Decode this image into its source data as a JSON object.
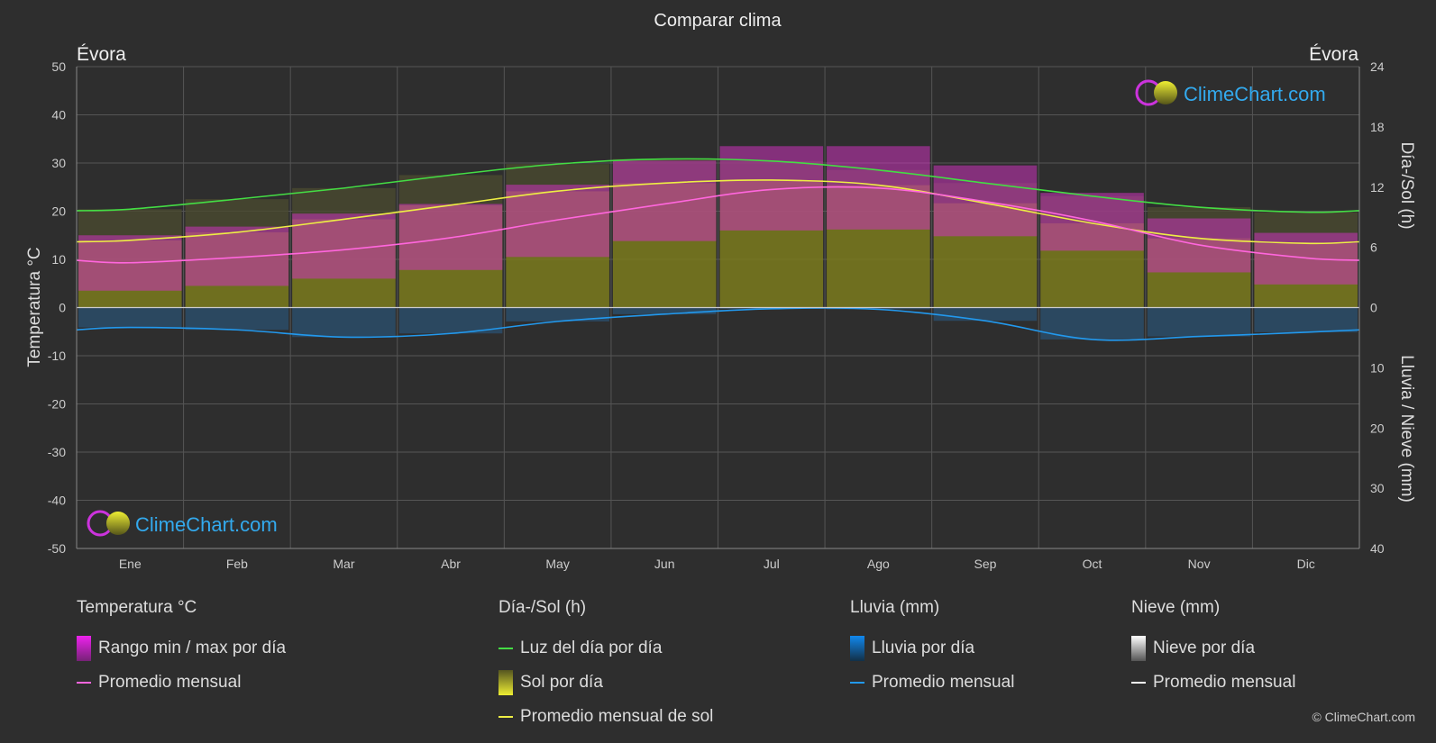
{
  "chart_data": {
    "type": "area",
    "title": "Comparar clima",
    "location_left": "Évora",
    "location_right": "Évora",
    "categories": [
      "Ene",
      "Feb",
      "Mar",
      "Abr",
      "May",
      "Jun",
      "Jul",
      "Ago",
      "Sep",
      "Oct",
      "Nov",
      "Dic"
    ],
    "y_left": {
      "label": "Temperatura °C",
      "range": [
        -50,
        50
      ],
      "ticks": [
        50,
        40,
        30,
        20,
        10,
        0,
        -10,
        -20,
        -30,
        -40,
        -50
      ]
    },
    "y_right_top": {
      "label": "Día-/Sol (h)",
      "range": [
        0,
        24
      ],
      "ticks": [
        24,
        18,
        12,
        6,
        0
      ]
    },
    "y_right_bottom": {
      "label": "Lluvia / Nieve (mm)",
      "range": [
        0,
        40
      ],
      "ticks": [
        0,
        10,
        20,
        30,
        40
      ]
    },
    "series": [
      {
        "name": "Luz del día por día",
        "unit": "h",
        "color": "#44dd44",
        "values": [
          9.8,
          10.8,
          11.9,
          13.2,
          14.3,
          14.8,
          14.6,
          13.7,
          12.4,
          11.1,
          10.0,
          9.5
        ]
      },
      {
        "name": "Promedio mensual de sol",
        "unit": "h",
        "color": "#eeee44",
        "values": [
          6.7,
          7.5,
          8.8,
          10.2,
          11.6,
          12.4,
          12.7,
          12.2,
          10.4,
          8.4,
          6.9,
          6.4
        ]
      },
      {
        "name": "Promedio mensual",
        "group": "Temperatura °C",
        "unit": "°C",
        "color": "#ff66dd",
        "values": [
          9.3,
          10.4,
          12.0,
          14.5,
          18.2,
          21.5,
          24.5,
          24.8,
          22.0,
          18.0,
          13.0,
          10.3
        ]
      },
      {
        "name": "Rango min / max por día",
        "unit": "°C",
        "color": "#dd22dd",
        "min": [
          3.5,
          4.5,
          6.0,
          7.8,
          10.5,
          13.8,
          16.0,
          16.2,
          14.8,
          11.8,
          7.3,
          4.8
        ],
        "max": [
          15.0,
          16.8,
          19.5,
          21.5,
          25.5,
          30.5,
          33.5,
          33.5,
          29.5,
          23.8,
          18.5,
          15.5
        ]
      },
      {
        "name": "Promedio mensual",
        "group": "Lluvia (mm)",
        "unit": "mm",
        "color": "#2299ee",
        "values": [
          3.3,
          3.7,
          4.9,
          4.3,
          2.3,
          1.1,
          0.2,
          0.3,
          2.2,
          5.3,
          4.8,
          4.1
        ]
      }
    ],
    "grid": true
  },
  "legend": {
    "temp": {
      "header": "Temperatura °C",
      "item1": "Rango min / max por día",
      "item2": "Promedio mensual"
    },
    "sun": {
      "header": "Día-/Sol (h)",
      "item1": "Luz del día por día",
      "item2": "Sol por día",
      "item3": "Promedio mensual de sol"
    },
    "rain": {
      "header": "Lluvia (mm)",
      "item1": "Lluvia por día",
      "item2": "Promedio mensual"
    },
    "snow": {
      "header": "Nieve (mm)",
      "item1": "Nieve por día",
      "item2": "Promedio mensual"
    }
  },
  "watermark": "ClimeChart.com",
  "copyright": "© ClimeChart.com",
  "colors": {
    "background": "#2e2e2e",
    "temp_band": "#cc22cc",
    "sun_fill": "#8a8a1e",
    "rain": "#2a6fa8",
    "daylight": "#44dd44"
  }
}
